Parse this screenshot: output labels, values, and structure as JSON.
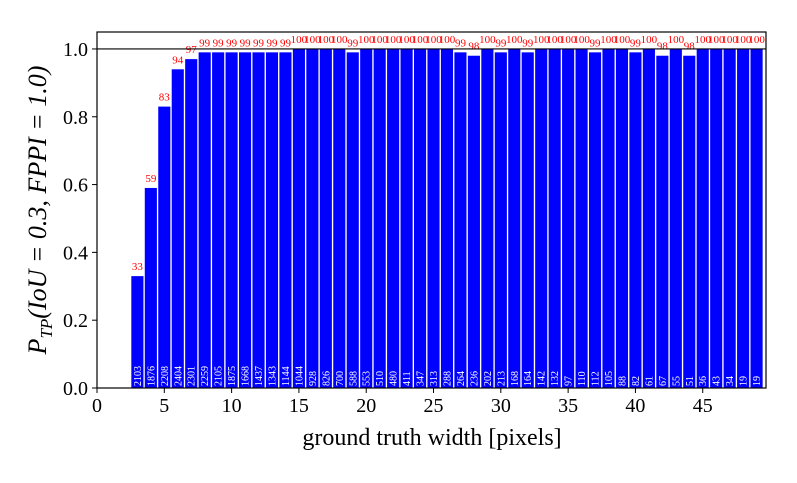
{
  "chart_data": {
    "type": "bar",
    "xlabel": "ground truth width [pixels]",
    "ylabel": {
      "main": "P",
      "sub": "TP",
      "rest": "(IoU = 0.3, FPPI = 1.0)"
    },
    "x": [
      3,
      4,
      5,
      6,
      7,
      8,
      9,
      10,
      11,
      12,
      13,
      14,
      15,
      16,
      17,
      18,
      19,
      20,
      21,
      22,
      23,
      24,
      25,
      26,
      27,
      28,
      29,
      30,
      31,
      32,
      33,
      34,
      35,
      36,
      37,
      38,
      39,
      40,
      41,
      42,
      43,
      44,
      45,
      46,
      47,
      48,
      49
    ],
    "values": [
      0.33,
      0.59,
      0.83,
      0.94,
      0.97,
      0.99,
      0.99,
      0.99,
      0.99,
      0.99,
      0.99,
      0.99,
      1.0,
      1.0,
      1.0,
      1.0,
      0.99,
      1.0,
      1.0,
      1.0,
      1.0,
      1.0,
      1.0,
      1.0,
      0.99,
      0.98,
      1.0,
      0.99,
      1.0,
      0.99,
      1.0,
      1.0,
      1.0,
      1.0,
      0.99,
      1.0,
      1.0,
      0.99,
      1.0,
      0.98,
      1.0,
      0.98,
      1.0,
      1.0,
      1.0,
      1.0,
      1.0
    ],
    "value_labels": [
      "33",
      "59",
      "83",
      "94",
      "97",
      "99",
      "99",
      "99",
      "99",
      "99",
      "99",
      "99",
      "100",
      "100",
      "100",
      "100",
      "99",
      "100",
      "100",
      "100",
      "100",
      "100",
      "100",
      "100",
      "99",
      "98",
      "100",
      "99",
      "100",
      "99",
      "100",
      "100",
      "100",
      "100",
      "99",
      "100",
      "100",
      "99",
      "100",
      "98",
      "100",
      "98",
      "100",
      "100",
      "100",
      "100",
      "100"
    ],
    "counts": [
      2103,
      1876,
      2208,
      2404,
      2301,
      2259,
      2105,
      1875,
      1668,
      1437,
      1343,
      1144,
      1044,
      928,
      826,
      700,
      588,
      553,
      510,
      480,
      411,
      347,
      313,
      288,
      264,
      236,
      202,
      213,
      168,
      164,
      142,
      132,
      97,
      110,
      112,
      105,
      88,
      82,
      61,
      67,
      55,
      51,
      36,
      43,
      34,
      19,
      19
    ],
    "color": "#0000ff",
    "value_label_color": "#ff0000",
    "count_color": "#ffffff",
    "hline": 1.0,
    "xlim": [
      0,
      49.7
    ],
    "ylim": [
      0,
      1.05
    ],
    "xticks": [
      0,
      5,
      10,
      15,
      20,
      25,
      30,
      35,
      40,
      45
    ],
    "yticks": [
      {
        "value": 0,
        "label": "0.0"
      },
      {
        "value": 0.2,
        "label": "0.2"
      },
      {
        "value": 0.4,
        "label": "0.4"
      },
      {
        "value": 0.6,
        "label": "0.6"
      },
      {
        "value": 0.8,
        "label": "0.8"
      },
      {
        "value": 1.0,
        "label": "1.0"
      }
    ]
  }
}
